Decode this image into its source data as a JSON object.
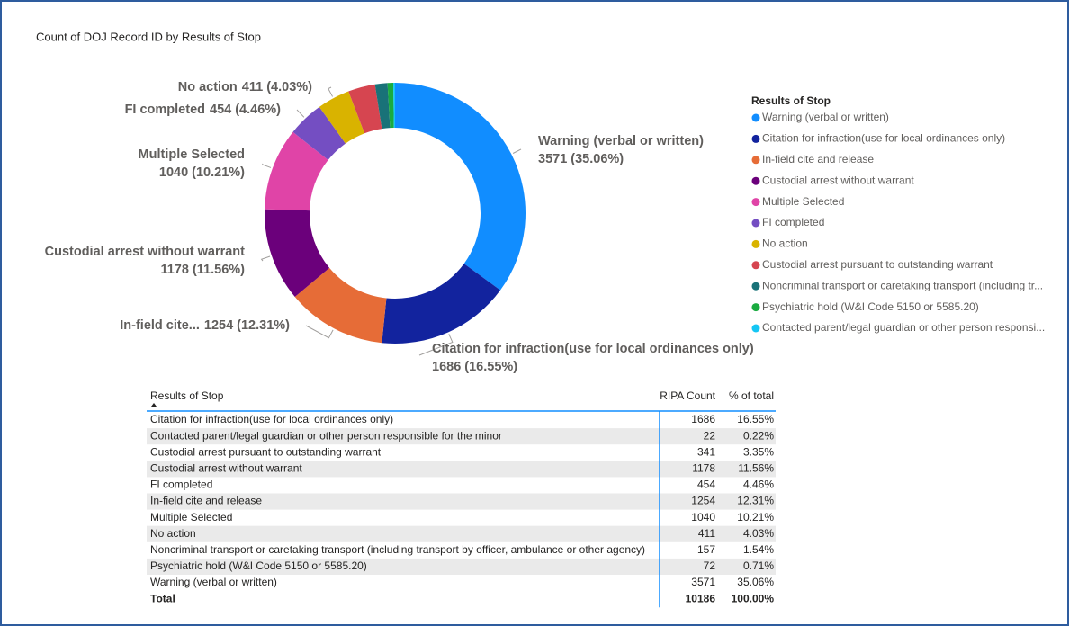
{
  "chart_data": {
    "type": "donut",
    "title": "Count of DOJ Record ID by Results of Stop",
    "legend_title": "Results of Stop",
    "legend": "right",
    "categories": [
      "Warning (verbal or written)",
      "Citation for infraction(use for local ordinances only)",
      "In-field cite and release",
      "Custodial arrest without warrant",
      "Multiple Selected",
      "FI completed",
      "No action",
      "Custodial arrest pursuant to outstanding warrant",
      "Noncriminal transport or caretaking transport (including tr...",
      "Psychiatric hold (W&I Code 5150 or 5585.20)",
      "Contacted parent/legal guardian or other person responsi..."
    ],
    "values": [
      3571,
      1686,
      1254,
      1178,
      1040,
      454,
      411,
      341,
      157,
      72,
      22
    ],
    "colors": [
      "#118DFF",
      "#12239E",
      "#E66C37",
      "#6B007B",
      "#E044A7",
      "#744EC2",
      "#D9B300",
      "#D64550",
      "#197278",
      "#1AAB40",
      "#15C6F4"
    ],
    "label_names": [
      "Warning (verbal or written)",
      "Citation for infraction(use for local ordinances only)",
      "In-field cite...",
      "Custodial arrest without warrant",
      "Multiple Selected",
      "FI completed",
      "No action",
      null,
      null,
      null,
      null
    ],
    "value_labels": [
      "3571 (35.06%)",
      "1686 (16.55%)",
      "1254 (12.31%)",
      "1178 (11.56%)",
      "1040 (10.21%)",
      "454 (4.46%)",
      "411 (4.03%)",
      null,
      null,
      null,
      null
    ]
  },
  "table": {
    "header": [
      "Results of Stop",
      "RIPA Count",
      "% of total"
    ],
    "rows": [
      [
        "Citation for infraction(use for local ordinances only)",
        "1686",
        "16.55%"
      ],
      [
        "Contacted parent/legal guardian or other person responsible for the minor",
        "22",
        "0.22%"
      ],
      [
        "Custodial arrest pursuant to outstanding warrant",
        "341",
        "3.35%"
      ],
      [
        "Custodial arrest without warrant",
        "1178",
        "11.56%"
      ],
      [
        "FI completed",
        "454",
        "4.46%"
      ],
      [
        "In-field cite and release",
        "1254",
        "12.31%"
      ],
      [
        "Multiple Selected",
        "1040",
        "10.21%"
      ],
      [
        "No action",
        "411",
        "4.03%"
      ],
      [
        "Noncriminal transport or caretaking transport (including transport by officer, ambulance or other agency)",
        "157",
        "1.54%"
      ],
      [
        "Psychiatric hold (W&I Code 5150 or 5585.20)",
        "72",
        "0.71%"
      ],
      [
        "Warning (verbal or written)",
        "3571",
        "35.06%"
      ]
    ],
    "total": [
      "Total",
      "10186",
      "100.00%"
    ]
  }
}
